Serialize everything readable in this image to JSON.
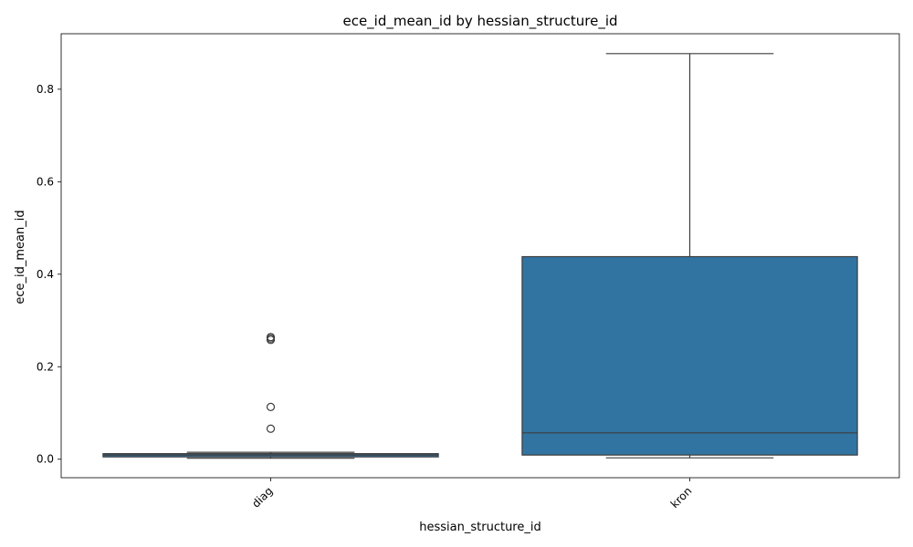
{
  "chart_data": {
    "type": "box",
    "title": "ece_id_mean_id by hessian_structure_id",
    "xlabel": "hessian_structure_id",
    "ylabel": "ece_id_mean_id",
    "ylim": [
      -0.04,
      0.92
    ],
    "yticks": [
      0.0,
      0.2,
      0.4,
      0.6,
      0.8
    ],
    "ytick_labels": [
      "0.0",
      "0.2",
      "0.4",
      "0.6",
      "0.8"
    ],
    "grid": false,
    "box_color": "#3274a1",
    "line_color": "#3d3d3d",
    "categories": [
      "diag",
      "kron"
    ],
    "boxes": [
      {
        "category": "diag",
        "whisker_low": 0.002,
        "q1": 0.005,
        "median": 0.009,
        "q3": 0.012,
        "whisker_high": 0.015,
        "outliers": [
          0.066,
          0.113,
          0.258,
          0.261,
          0.264
        ]
      },
      {
        "category": "kron",
        "whisker_low": 0.003,
        "q1": 0.009,
        "median": 0.057,
        "q3": 0.438,
        "whisker_high": 0.877,
        "outliers": []
      }
    ]
  }
}
